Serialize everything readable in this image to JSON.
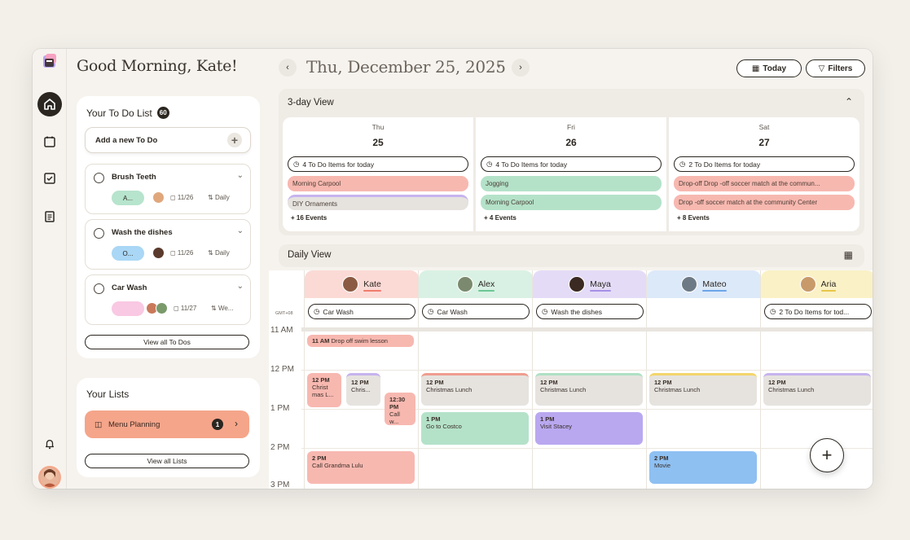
{
  "sidebar_rail": {
    "icons": [
      "app-logo",
      "home-icon",
      "calendar-icon",
      "checklist-icon",
      "notes-icon",
      "bell-icon"
    ]
  },
  "greeting": "Good Morning, Kate!",
  "todo_list": {
    "title": "Your To Do List",
    "count": "60",
    "add_placeholder": "Add a new To Do",
    "items": [
      {
        "name": "Brush Teeth",
        "assignee": "A...",
        "date": "11/26",
        "repeat": "Daily",
        "pill_color": "#b7e4cd"
      },
      {
        "name": "Wash the dishes",
        "assignee": "O...",
        "date": "11/26",
        "repeat": "Daily",
        "pill_color": "#a9d7f5"
      },
      {
        "name": "Car Wash",
        "assignee": "",
        "date": "11/27",
        "repeat": "We...",
        "pill_color": "#f9c8e3"
      }
    ],
    "view_all": "View all To Dos"
  },
  "lists": {
    "title": "Your Lists",
    "item_label": "Menu Planning",
    "item_count": "1",
    "view_all": "View all Lists"
  },
  "header": {
    "date": "Thu, December 25, 2025",
    "today_btn": "Today",
    "filters_btn": "Filters"
  },
  "three_day": {
    "title": "3-day View",
    "days": [
      {
        "dow": "Thu",
        "num": "25",
        "todo": "4 To Do Items for today",
        "events": [
          {
            "label": "Morning Carpool",
            "color": "#f7b8b0"
          },
          {
            "label": "DIY Ornaments",
            "color": "#e6e3df"
          }
        ],
        "more": "+ 16 Events"
      },
      {
        "dow": "Fri",
        "num": "26",
        "todo": "4 To Do Items for today",
        "events": [
          {
            "label": "Jogging",
            "color": "#b4e2c9"
          },
          {
            "label": "Morning Carpool",
            "color": "#b4e2c9"
          }
        ],
        "more": "+ 4 Events"
      },
      {
        "dow": "Sat",
        "num": "27",
        "todo": "2 To Do Items for today",
        "events": [
          {
            "label": "Drop-off Drop -off soccer match at the commun...",
            "color": "#f7b8b0"
          },
          {
            "label": "Drop -off soccer match at the community Center",
            "color": "#f7b8b0"
          }
        ],
        "more": "+ 8 Events"
      }
    ]
  },
  "daily": {
    "title": "Daily View",
    "gmt": "GMT+08",
    "times": [
      "11 AM",
      "12 PM",
      "1 PM",
      "2 PM",
      "3 PM"
    ],
    "people": [
      {
        "name": "Kate",
        "color": "#fbdad6",
        "underline": "#f07c6c",
        "task": "Car Wash"
      },
      {
        "name": "Alex",
        "color": "#d9f1e4",
        "underline": "#6cc796",
        "task": "Car Wash"
      },
      {
        "name": "Maya",
        "color": "#e4dcf7",
        "underline": "#a690e6",
        "task": "Wash the dishes"
      },
      {
        "name": "Mateo",
        "color": "#dce9f9",
        "underline": "#6ea6e8",
        "task": ""
      },
      {
        "name": "Aria",
        "color": "#faf1c6",
        "underline": "#e8c64a",
        "task": "2 To Do Items for tod..."
      }
    ],
    "events": {
      "swim": {
        "time": "11 AM",
        "label": "Drop off swim lesson"
      },
      "kate_xmas": {
        "time": "12 PM",
        "label": "Christ mas L..."
      },
      "kate_chris": {
        "time": "12 PM",
        "label": "Chris..."
      },
      "kate_call": {
        "time": "12:30 PM",
        "label": "Call w..."
      },
      "alex_lunch": {
        "time": "12 PM",
        "label": "Christmas Lunch"
      },
      "maya_lunch": {
        "time": "12 PM",
        "label": "Christmas Lunch"
      },
      "mateo_lunch": {
        "time": "12 PM",
        "label": "Christmas Lunch"
      },
      "aria_lunch": {
        "time": "12 PM",
        "label": "Christmas Lunch"
      },
      "costco": {
        "time": "1 PM",
        "label": "Go to Costco"
      },
      "stacey": {
        "time": "1 PM",
        "label": "Visit Stacey"
      },
      "grandma": {
        "time": "2 PM",
        "label": "Call Grandma Lulu"
      },
      "movie": {
        "time": "2 PM",
        "label": "Movie"
      }
    }
  },
  "fab_label": "+"
}
